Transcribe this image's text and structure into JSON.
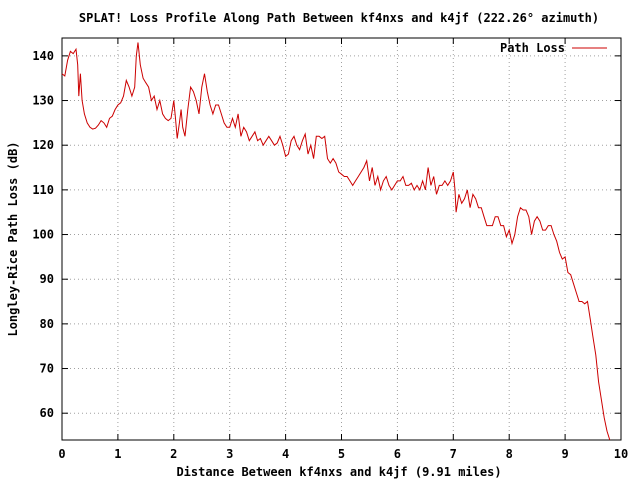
{
  "chart_data": {
    "type": "line",
    "title": "SPLAT! Loss Profile Along Path Between kf4nxs and k4jf (222.26° azimuth)",
    "xlabel": "Distance Between kf4nxs and k4jf (9.91 miles)",
    "ylabel": "Longley-Rice Path Loss (dB)",
    "xlim": [
      0,
      10
    ],
    "ylim": [
      54,
      144
    ],
    "xticks": [
      "0",
      "1",
      "2",
      "3",
      "4",
      "5",
      "6",
      "7",
      "8",
      "9",
      "10"
    ],
    "yticks": [
      "60",
      "70",
      "80",
      "90",
      "100",
      "110",
      "120",
      "130",
      "140"
    ],
    "grid": true,
    "legend_position": "top-right",
    "series": [
      {
        "name": "Path Loss",
        "color": "#cc0000",
        "points": [
          [
            0.0,
            136
          ],
          [
            0.05,
            135.5
          ],
          [
            0.1,
            139
          ],
          [
            0.15,
            141
          ],
          [
            0.2,
            140.5
          ],
          [
            0.25,
            141.5
          ],
          [
            0.28,
            138
          ],
          [
            0.3,
            131
          ],
          [
            0.33,
            136
          ],
          [
            0.36,
            130
          ],
          [
            0.4,
            127
          ],
          [
            0.45,
            125
          ],
          [
            0.5,
            124
          ],
          [
            0.55,
            123.6
          ],
          [
            0.6,
            123.8
          ],
          [
            0.65,
            124.5
          ],
          [
            0.7,
            125.5
          ],
          [
            0.75,
            125
          ],
          [
            0.8,
            124
          ],
          [
            0.85,
            126
          ],
          [
            0.9,
            126.5
          ],
          [
            0.95,
            128
          ],
          [
            1.0,
            129
          ],
          [
            1.05,
            129.5
          ],
          [
            1.1,
            131
          ],
          [
            1.15,
            134.5
          ],
          [
            1.2,
            133
          ],
          [
            1.25,
            131
          ],
          [
            1.3,
            133
          ],
          [
            1.33,
            140
          ],
          [
            1.36,
            143
          ],
          [
            1.4,
            138
          ],
          [
            1.45,
            135
          ],
          [
            1.5,
            134
          ],
          [
            1.55,
            133
          ],
          [
            1.6,
            130
          ],
          [
            1.65,
            131
          ],
          [
            1.7,
            128
          ],
          [
            1.75,
            130
          ],
          [
            1.8,
            127
          ],
          [
            1.85,
            126
          ],
          [
            1.9,
            125.5
          ],
          [
            1.95,
            126
          ],
          [
            2.0,
            130
          ],
          [
            2.03,
            126
          ],
          [
            2.06,
            121.5
          ],
          [
            2.1,
            125
          ],
          [
            2.13,
            128
          ],
          [
            2.16,
            124
          ],
          [
            2.2,
            122
          ],
          [
            2.25,
            128
          ],
          [
            2.3,
            133
          ],
          [
            2.35,
            132
          ],
          [
            2.4,
            130
          ],
          [
            2.45,
            127
          ],
          [
            2.5,
            133
          ],
          [
            2.55,
            136
          ],
          [
            2.6,
            132
          ],
          [
            2.65,
            129
          ],
          [
            2.7,
            127
          ],
          [
            2.75,
            129
          ],
          [
            2.8,
            129
          ],
          [
            2.85,
            127
          ],
          [
            2.9,
            125
          ],
          [
            2.95,
            124
          ],
          [
            3.0,
            124
          ],
          [
            3.05,
            126
          ],
          [
            3.1,
            124
          ],
          [
            3.15,
            127
          ],
          [
            3.2,
            122
          ],
          [
            3.25,
            124
          ],
          [
            3.3,
            123
          ],
          [
            3.35,
            121
          ],
          [
            3.4,
            122
          ],
          [
            3.45,
            123
          ],
          [
            3.5,
            121
          ],
          [
            3.55,
            121.5
          ],
          [
            3.6,
            120
          ],
          [
            3.65,
            121
          ],
          [
            3.7,
            122
          ],
          [
            3.75,
            121
          ],
          [
            3.8,
            120
          ],
          [
            3.85,
            120.5
          ],
          [
            3.9,
            122
          ],
          [
            3.95,
            120
          ],
          [
            4.0,
            117.5
          ],
          [
            4.05,
            118
          ],
          [
            4.1,
            121
          ],
          [
            4.15,
            122
          ],
          [
            4.2,
            120
          ],
          [
            4.25,
            119
          ],
          [
            4.3,
            121
          ],
          [
            4.35,
            122.5
          ],
          [
            4.4,
            118
          ],
          [
            4.45,
            120
          ],
          [
            4.5,
            117
          ],
          [
            4.55,
            122
          ],
          [
            4.6,
            122
          ],
          [
            4.65,
            121.5
          ],
          [
            4.7,
            122
          ],
          [
            4.75,
            117
          ],
          [
            4.8,
            116
          ],
          [
            4.85,
            117
          ],
          [
            4.9,
            116
          ],
          [
            4.95,
            114
          ],
          [
            5.0,
            113.5
          ],
          [
            5.05,
            113
          ],
          [
            5.1,
            113
          ],
          [
            5.15,
            112
          ],
          [
            5.2,
            111
          ],
          [
            5.25,
            112
          ],
          [
            5.3,
            113
          ],
          [
            5.35,
            114
          ],
          [
            5.4,
            115
          ],
          [
            5.45,
            116.5
          ],
          [
            5.5,
            112
          ],
          [
            5.55,
            115
          ],
          [
            5.6,
            111
          ],
          [
            5.65,
            113
          ],
          [
            5.7,
            110
          ],
          [
            5.75,
            112
          ],
          [
            5.8,
            113
          ],
          [
            5.85,
            111
          ],
          [
            5.9,
            110
          ],
          [
            5.95,
            111
          ],
          [
            6.0,
            112
          ],
          [
            6.05,
            112
          ],
          [
            6.1,
            113
          ],
          [
            6.15,
            111
          ],
          [
            6.2,
            111
          ],
          [
            6.25,
            111.5
          ],
          [
            6.3,
            110
          ],
          [
            6.35,
            111
          ],
          [
            6.4,
            110
          ],
          [
            6.45,
            112
          ],
          [
            6.5,
            110
          ],
          [
            6.55,
            115
          ],
          [
            6.6,
            111
          ],
          [
            6.65,
            113
          ],
          [
            6.7,
            109
          ],
          [
            6.75,
            111
          ],
          [
            6.8,
            111
          ],
          [
            6.85,
            112
          ],
          [
            6.9,
            111
          ],
          [
            6.95,
            112
          ],
          [
            7.0,
            114
          ],
          [
            7.03,
            110
          ],
          [
            7.05,
            105
          ],
          [
            7.1,
            109
          ],
          [
            7.15,
            107
          ],
          [
            7.2,
            108
          ],
          [
            7.25,
            110
          ],
          [
            7.3,
            106
          ],
          [
            7.35,
            109
          ],
          [
            7.4,
            108
          ],
          [
            7.45,
            106
          ],
          [
            7.5,
            106
          ],
          [
            7.55,
            104
          ],
          [
            7.6,
            102
          ],
          [
            7.65,
            102
          ],
          [
            7.7,
            102
          ],
          [
            7.75,
            104
          ],
          [
            7.8,
            104
          ],
          [
            7.85,
            102
          ],
          [
            7.9,
            102
          ],
          [
            7.95,
            99.5
          ],
          [
            8.0,
            101
          ],
          [
            8.05,
            98
          ],
          [
            8.1,
            100
          ],
          [
            8.15,
            104
          ],
          [
            8.2,
            106
          ],
          [
            8.25,
            105.5
          ],
          [
            8.3,
            105.5
          ],
          [
            8.35,
            104
          ],
          [
            8.4,
            100
          ],
          [
            8.45,
            103
          ],
          [
            8.5,
            104
          ],
          [
            8.55,
            103
          ],
          [
            8.6,
            101
          ],
          [
            8.65,
            101
          ],
          [
            8.7,
            102
          ],
          [
            8.75,
            102
          ],
          [
            8.8,
            100
          ],
          [
            8.85,
            98.5
          ],
          [
            8.9,
            96
          ],
          [
            8.95,
            94.5
          ],
          [
            9.0,
            95
          ],
          [
            9.05,
            91.5
          ],
          [
            9.1,
            91
          ],
          [
            9.15,
            89
          ],
          [
            9.2,
            87
          ],
          [
            9.25,
            85
          ],
          [
            9.3,
            85
          ],
          [
            9.35,
            84.5
          ],
          [
            9.4,
            85
          ],
          [
            9.45,
            81
          ],
          [
            9.5,
            77
          ],
          [
            9.55,
            73
          ],
          [
            9.6,
            67
          ],
          [
            9.65,
            63
          ],
          [
            9.7,
            59
          ],
          [
            9.75,
            56
          ],
          [
            9.8,
            54
          ]
        ]
      }
    ]
  }
}
